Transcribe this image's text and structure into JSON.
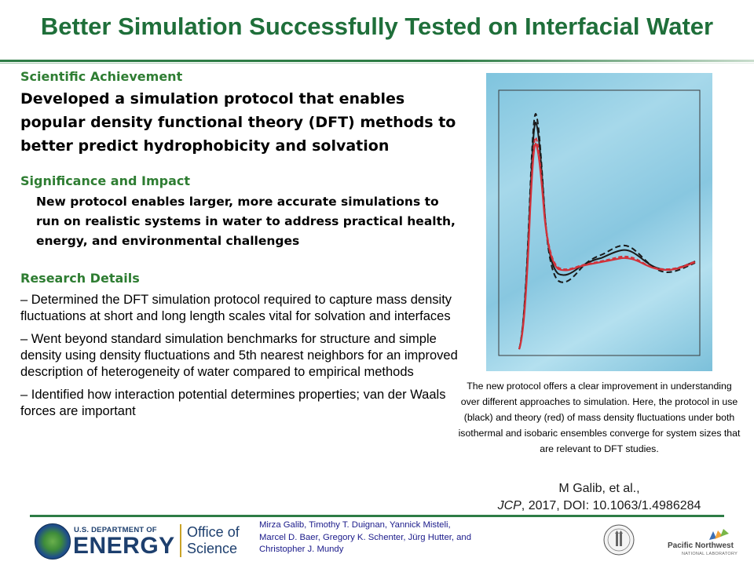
{
  "title": "Better Simulation Successfully Tested on Interfacial Water",
  "achievement": {
    "heading": "Scientific Achievement",
    "text": "Developed a simulation protocol that enables popular density functional theory (DFT) methods to better predict hydrophobicity and solvation"
  },
  "impact": {
    "heading": "Significance and Impact",
    "text": "New protocol enables larger, more accurate simulations to run on realistic systems in water to address practical health, energy, and environmental challenges"
  },
  "details": {
    "heading": "Research Details",
    "items": [
      "– Determined the DFT simulation protocol required to capture mass density fluctuations at short and long length scales vital for solvation and interfaces",
      "– Went beyond standard simulation benchmarks for structure and simple density using density fluctuations and 5th nearest neighbors for an improved description of heterogeneity of water compared to empirical methods",
      "– Identified how interaction potential determines properties; van der Waals forces are important"
    ]
  },
  "caption": "The new protocol offers a clear improvement in understanding over different approaches to simulation. Here, the protocol in use (black) and theory (red) of mass density fluctuations under both isothermal and isobaric ensembles converge for system sizes that are relevant to DFT studies.",
  "citation": {
    "line1": "M Galib, et al.,",
    "journal": "JCP",
    "rest": ", 2017, DOI: 10.1063/1.4986284"
  },
  "footer": {
    "doe_small": "U.S. DEPARTMENT OF",
    "doe_big": "ENERGY",
    "office_line1": "Office of",
    "office_line2": "Science",
    "authors": "Mirza Galib, Timothy T. Duignan, Yannick Misteli, Marcel D. Baer, Gregory K. Schenter, Jürg Hutter, and Christopher J. Mundy",
    "pnnl_name": "Pacific Northwest",
    "pnnl_sub": "NATIONAL LABORATORY"
  },
  "colors": {
    "title_green": "#1f6f3a",
    "heading_green": "#2e7d32",
    "doe_blue": "#1d3f6e",
    "curve_black": "#1a1a1a",
    "curve_red": "#d2323a"
  }
}
